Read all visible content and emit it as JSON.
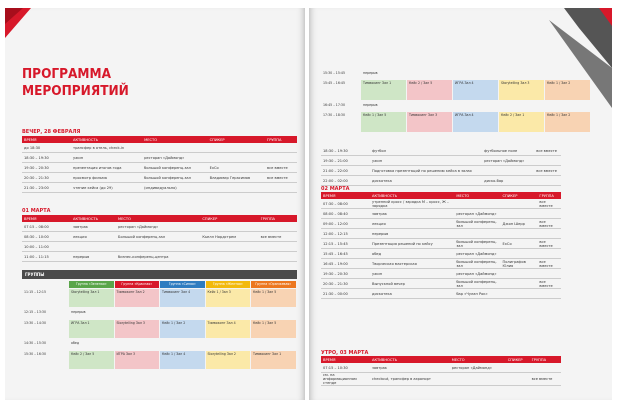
{
  "title_line1": "ПРОГРАММА",
  "title_line2": "МЕРОПРИЯТИЙ",
  "headers": {
    "time": "ВРЕМЯ",
    "activity": "АКТИВНОСТЬ",
    "place": "МЕСТО",
    "speaker": "СПИКЕР",
    "group": "ГРУППА"
  },
  "evening_section": "ВЕЧЕР, 28 ФЕВРАЛЯ",
  "evening_rows": [
    {
      "time": "до 18:30",
      "activity": "трансфер в отель, check-in",
      "place": "",
      "speaker": "",
      "group": ""
    },
    {
      "time": "18:30 – 19:30",
      "activity": "ужин",
      "place": "ресторан «Даймонд»",
      "speaker": "",
      "group": ""
    },
    {
      "time": "19:30 – 20:30",
      "activity": "презентация итогов года",
      "place": "большой конференц-зал",
      "speaker": "ExCo",
      "group": "все вместе"
    },
    {
      "time": "20:30 – 21:30",
      "activity": "просмотр фильма",
      "place": "большой конференц-зал",
      "speaker": "Владимир Герасимов",
      "group": "все вместе"
    },
    {
      "time": "21:30 – 23:00",
      "activity": "чтение кейса (до 29)",
      "place": "(индивидуально)",
      "speaker": "",
      "group": ""
    }
  ],
  "march1_section": "01 МАРТА",
  "march1_rows": [
    {
      "time": "07:15 – 08:00",
      "activity": "завтрак",
      "place": "ресторан «Даймонд»",
      "speaker": "",
      "group": ""
    },
    {
      "time": "08:30 – 10:00",
      "activity": "лекция",
      "place": "Большой конференц-зал",
      "speaker": "Кьелл Нордстрем",
      "group": "все вместе"
    },
    {
      "time": "10:00 – 11:00",
      "activity": "",
      "place": "",
      "speaker": "",
      "group": ""
    },
    {
      "time": "11:00 – 11:15",
      "activity": "перерыв",
      "place": "бизнес-конференц-центра",
      "speaker": "",
      "group": ""
    }
  ],
  "groups_label": "ГРУППЫ",
  "group_names": [
    "Группа «Зеленая»",
    "Группа «Красная»",
    "Группа «Синяя»",
    "Группа «Желтая»",
    "Группа «Оранжевая»"
  ],
  "group_colors": [
    "#5aa54a",
    "#d7182a",
    "#2e7cc0",
    "#f2b90c",
    "#ec7720"
  ],
  "group_slots": [
    {
      "time": "11:15 – 12:15",
      "cells": [
        "Storytelling Зал 1",
        "Тимвокинг Зал 2",
        "Тимвокинг Зал 4",
        "Кейс 1 / Зал 3",
        "Кейс 1 / Зал 5"
      ]
    },
    {
      "time": "12:15 – 13:30",
      "cells": [
        "перерыв",
        "",
        "",
        "",
        ""
      ]
    },
    {
      "time": "13:30 – 14:30",
      "cells": [
        "ИГРА Зал 1",
        "Storytelling Зал 3",
        "Кейс 1 / Зал 2",
        "Тимвокинг Зал 4",
        "Кейс 1 / Зал 5"
      ]
    },
    {
      "time": "14:30 – 15:30",
      "cells": [
        "обед",
        "",
        "",
        "",
        ""
      ]
    },
    {
      "time": "15:30 – 16:30",
      "cells": [
        "Кейс 2 / Зал 5",
        "ИГРА Зал 3",
        "Кейс 1 / Зал 4",
        "Storytelling Зал 2",
        "Тимвокинг Зал 1"
      ]
    }
  ],
  "right_top_rows": [
    {
      "time": "15:30 – 15:45",
      "text": "перерыв"
    },
    {
      "time": "15:45 – 16:45",
      "cells": [
        "Тимвокинг Зал 1",
        "Кейс 2 / Зал 5",
        "ИГРА Зал 4",
        "Storytelling Зал 3",
        "Кейс 1 / Зал 2"
      ]
    },
    {
      "time": "16:45 – 17:30",
      "text": "перерыв"
    },
    {
      "time": "17:30 – 18:30",
      "cells": [
        "Кейс 1 / Зал 5",
        "Тимвокинг Зал 3",
        "ИГРА Зал 4",
        "Кейс 2 / Зал 1",
        "Кейс 1 / Зал 2"
      ]
    }
  ],
  "right_rows_a": [
    {
      "time": "18:30 – 19:30",
      "activity": "футбол",
      "place": "футбольное поле",
      "speaker": "",
      "group": "все вместе"
    },
    {
      "time": "19:30 – 21:00",
      "activity": "ужин",
      "place": "ресторан «Даймонд»",
      "speaker": "",
      "group": ""
    },
    {
      "time": "21:00 – 22:00",
      "activity": "Подготовка презентаций по решению кейса в залах",
      "place": "",
      "speaker": "",
      "group": "все вместе"
    },
    {
      "time": "22:00 – 02:00",
      "activity": "дискотека",
      "place": "диско-бар",
      "speaker": "",
      "group": ""
    }
  ],
  "march2_section": "02 МАРТА",
  "march2_rows": [
    {
      "time": "07:30 – 08:00",
      "activity": "утренний кросс / зарядка М – кросс, Ж – зарядка",
      "place": "",
      "speaker": "",
      "group": "все вместе"
    },
    {
      "time": "08:00 – 08:40",
      "activity": "завтрак",
      "place": "ресторан «Даймонд»",
      "speaker": "",
      "group": ""
    },
    {
      "time": "09:00 – 12:00",
      "activity": "лекция",
      "place": "большой конференц-зал",
      "speaker": "Джон Шерр",
      "group": "все вместе"
    },
    {
      "time": "12:00 – 12:15",
      "activity": "перерыв",
      "place": "",
      "speaker": "",
      "group": ""
    },
    {
      "time": "12:15 – 15:45",
      "activity": "Презентация решений по кейсу",
      "place": "большой конференц-зал",
      "speaker": "ExCo",
      "group": "все вместе"
    },
    {
      "time": "15:45 – 16:45",
      "activity": "обед",
      "place": "ресторан «Даймонд»",
      "speaker": "",
      "group": ""
    },
    {
      "time": "16:45 – 19:00",
      "activity": "Творческая мастерская",
      "place": "большой конференц-зал",
      "speaker": "Полиграфов Юлия",
      "group": "все вместе"
    },
    {
      "time": "19:30 – 20:30",
      "activity": "ужин",
      "place": "ресторан «Даймонд»",
      "speaker": "",
      "group": ""
    },
    {
      "time": "20:30 – 21:30",
      "activity": "Выпускной вечер",
      "place": "большой конференц-зал",
      "speaker": "",
      "group": "все вместе"
    },
    {
      "time": "21:30 – 00:00",
      "activity": "дискотека",
      "place": "бар «Чулан Рок»",
      "speaker": "",
      "group": ""
    }
  ],
  "morning_section": "УТРО, 03 МАРТА",
  "morning_rows": [
    {
      "time": "07:15 – 10:30",
      "activity": "завтрак",
      "place": "ресторан «Даймонд»",
      "speaker": "",
      "group": ""
    },
    {
      "time": "см. на информационном стенде",
      "activity": "checkout, трансфер в аэропорт",
      "place": "",
      "speaker": "",
      "group": "все вместе"
    }
  ]
}
